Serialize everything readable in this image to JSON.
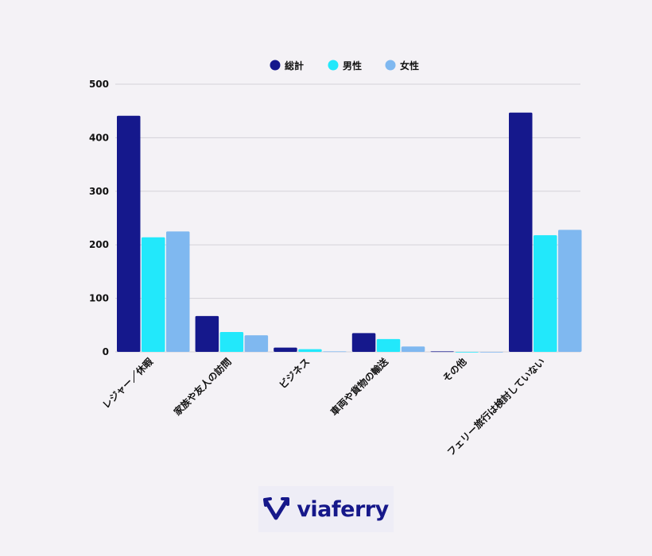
{
  "chart_data": {
    "type": "bar",
    "categories": [
      "レジャー／休暇",
      "家族や友人の訪問",
      "ビジネス",
      "車両や貨物の輸送",
      "その他",
      "フェリー旅行は検討していない"
    ],
    "series": [
      {
        "name": "総計",
        "color": "#15188c",
        "values": [
          441,
          67,
          8,
          35,
          1,
          447
        ]
      },
      {
        "name": "男性",
        "color": "#22e8fb",
        "values": [
          214,
          37,
          5,
          24,
          0,
          218
        ]
      },
      {
        "name": "女性",
        "color": "#7fb8f0",
        "values": [
          225,
          31,
          1,
          10,
          0,
          228
        ]
      }
    ],
    "ylim": [
      0,
      500
    ],
    "yticks": [
      "0",
      "100",
      "200",
      "300",
      "400",
      "500"
    ],
    "grid": true,
    "legend": "top-center"
  },
  "logo": {
    "text": "viaferry"
  }
}
